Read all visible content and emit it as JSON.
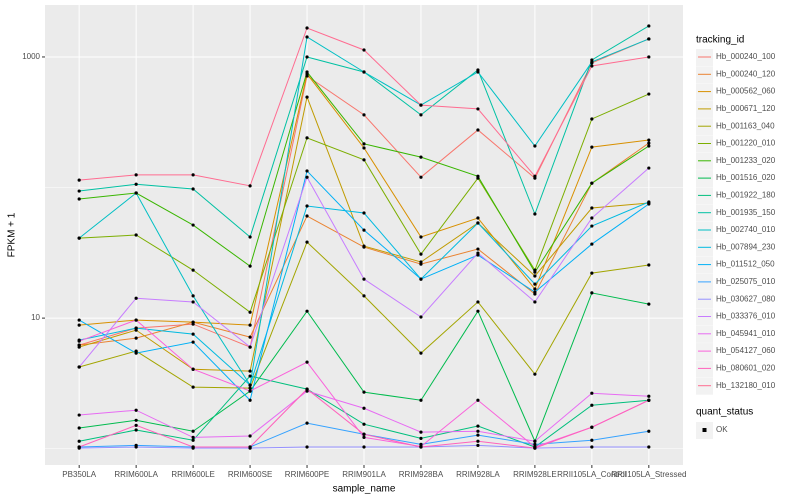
{
  "chart_data": {
    "type": "line",
    "x_label": "sample_name",
    "y_label": "FPKM + 1",
    "y_scale": "log10",
    "categories": [
      "PB350LA",
      "RRIM600LA",
      "RRIM600LE",
      "RRIM600SE",
      "RRIM600PE",
      "RRIM901LA",
      "RRIM928BA",
      "RRIM928LA",
      "RRIM928LE",
      "RRII105LA_Control",
      "RRII105LA_Stressed"
    ],
    "ylim": [
      0.75,
      2500
    ],
    "yticks": [
      10,
      1000
    ],
    "y_minor_grid": [
      1,
      100
    ],
    "grid": true,
    "legend_position": "right",
    "legend_title": "tracking_id",
    "shape_legend": {
      "title": "quant_status",
      "labels": [
        "OK"
      ]
    },
    "point_color": "#000000",
    "series": [
      {
        "name": "Hb_000240_100",
        "color": "#F8766D",
        "values": [
          6.21,
          8.38,
          9.0,
          6.0,
          715,
          360,
          120,
          276,
          118,
          900,
          1374
        ]
      },
      {
        "name": "Hb_000240_120",
        "color": "#EA8331",
        "values": [
          6.21,
          7.03,
          9.31,
          7.15,
          60.5,
          35.0,
          25.9,
          33.8,
          15.3,
          108,
          219
        ]
      },
      {
        "name": "Hb_000562_060",
        "color": "#D89000",
        "values": [
          8.84,
          9.66,
          9.31,
          8.84,
          741,
          201,
          41.8,
          58.4,
          16.7,
          204,
          231
        ]
      },
      {
        "name": "Hb_000671_120",
        "color": "#C09B00",
        "values": [
          6.0,
          8.09,
          4.06,
          3.93,
          493,
          35.6,
          26.9,
          53.5,
          21.0,
          69.7,
          76.1
        ]
      },
      {
        "name": "Hb_001163_040",
        "color": "#A3A500",
        "values": [
          4.22,
          5.59,
          2.96,
          2.91,
          38.2,
          14.8,
          5.39,
          13.3,
          3.72,
          22.1,
          25.5
        ]
      },
      {
        "name": "Hb_001220_010",
        "color": "#7CAE00",
        "values": [
          41.0,
          43.3,
          23.3,
          11.1,
          240,
          163,
          30.9,
          118,
          23.3,
          335,
          520
        ]
      },
      {
        "name": "Hb_001233_020",
        "color": "#39B600",
        "values": [
          81.7,
          90.8,
          51.6,
          25.0,
          767,
          216,
          171,
          122,
          22.5,
          108,
          208
        ]
      },
      {
        "name": "Hb_001516_020",
        "color": "#00BB4E",
        "values": [
          1.44,
          1.65,
          1.36,
          2.76,
          11.3,
          2.71,
          2.35,
          11.3,
          1.14,
          15.6,
          12.8
        ]
      },
      {
        "name": "Hb_001922_180",
        "color": "#00BF7D",
        "values": [
          1.14,
          1.39,
          1.16,
          3.6,
          2.86,
          1.54,
          1.2,
          1.49,
          1.03,
          2.15,
          2.35
        ]
      },
      {
        "name": "Hb_001935_150",
        "color": "#00C1A3",
        "values": [
          94.0,
          106,
          97.4,
          41.8,
          1000,
          767,
          360,
          795,
          62.7,
          949,
          1728
        ]
      },
      {
        "name": "Hb_002740_010",
        "color": "#00BFC4",
        "values": [
          41.0,
          90.8,
          14.8,
          3.07,
          1423,
          767,
          428,
          767,
          208,
          916,
          1374
        ]
      },
      {
        "name": "Hb_007894_230",
        "color": "#00BAE0",
        "values": [
          6.78,
          8.38,
          7.54,
          3.07,
          72.2,
          63.8,
          19.9,
          53.5,
          18.2,
          50.7,
          77.5
        ]
      },
      {
        "name": "Hb_011512_050",
        "color": "#00B0F6",
        "values": [
          9.66,
          5.39,
          6.55,
          2.35,
          134,
          47.2,
          19.9,
          30.4,
          15.8,
          36.9,
          74.8
        ]
      },
      {
        "name": "Hb_025075_010",
        "color": "#35A2FF",
        "values": [
          1.03,
          1.06,
          1.03,
          1.03,
          1.57,
          1.29,
          1.08,
          1.27,
          1.08,
          1.16,
          1.36
        ]
      },
      {
        "name": "Hb_030627_080",
        "color": "#9590FF",
        "values": [
          1.01,
          1.03,
          1.01,
          1.01,
          1.03,
          1.03,
          1.03,
          1.06,
          1.01,
          1.03,
          1.03
        ]
      },
      {
        "name": "Hb_033376_010",
        "color": "#C77CFF",
        "values": [
          4.22,
          14.2,
          13.3,
          6.0,
          120,
          19.9,
          10.2,
          31.5,
          13.3,
          58.4,
          141
        ]
      },
      {
        "name": "Hb_045941_010",
        "color": "#E76BF3",
        "values": [
          1.81,
          1.97,
          1.22,
          1.25,
          2.76,
          2.04,
          1.34,
          1.36,
          1.14,
          2.66,
          2.52
        ]
      },
      {
        "name": "Hb_054127_060",
        "color": "#FA62DB",
        "values": [
          6.66,
          9.66,
          4.06,
          2.76,
          4.6,
          1.22,
          1.04,
          2.35,
          1.03,
          1.46,
          2.35
        ]
      },
      {
        "name": "Hb_080601_020",
        "color": "#FF62BC",
        "values": [
          1.03,
          1.51,
          1.03,
          1.03,
          2.86,
          1.29,
          1.03,
          1.14,
          1.01,
          1.46,
          2.35
        ]
      },
      {
        "name": "Hb_132180_010",
        "color": "#FF6C91",
        "values": [
          114,
          125,
          125,
          103,
          1667,
          1131,
          428,
          400,
          122,
          853,
          1000
        ]
      }
    ]
  }
}
